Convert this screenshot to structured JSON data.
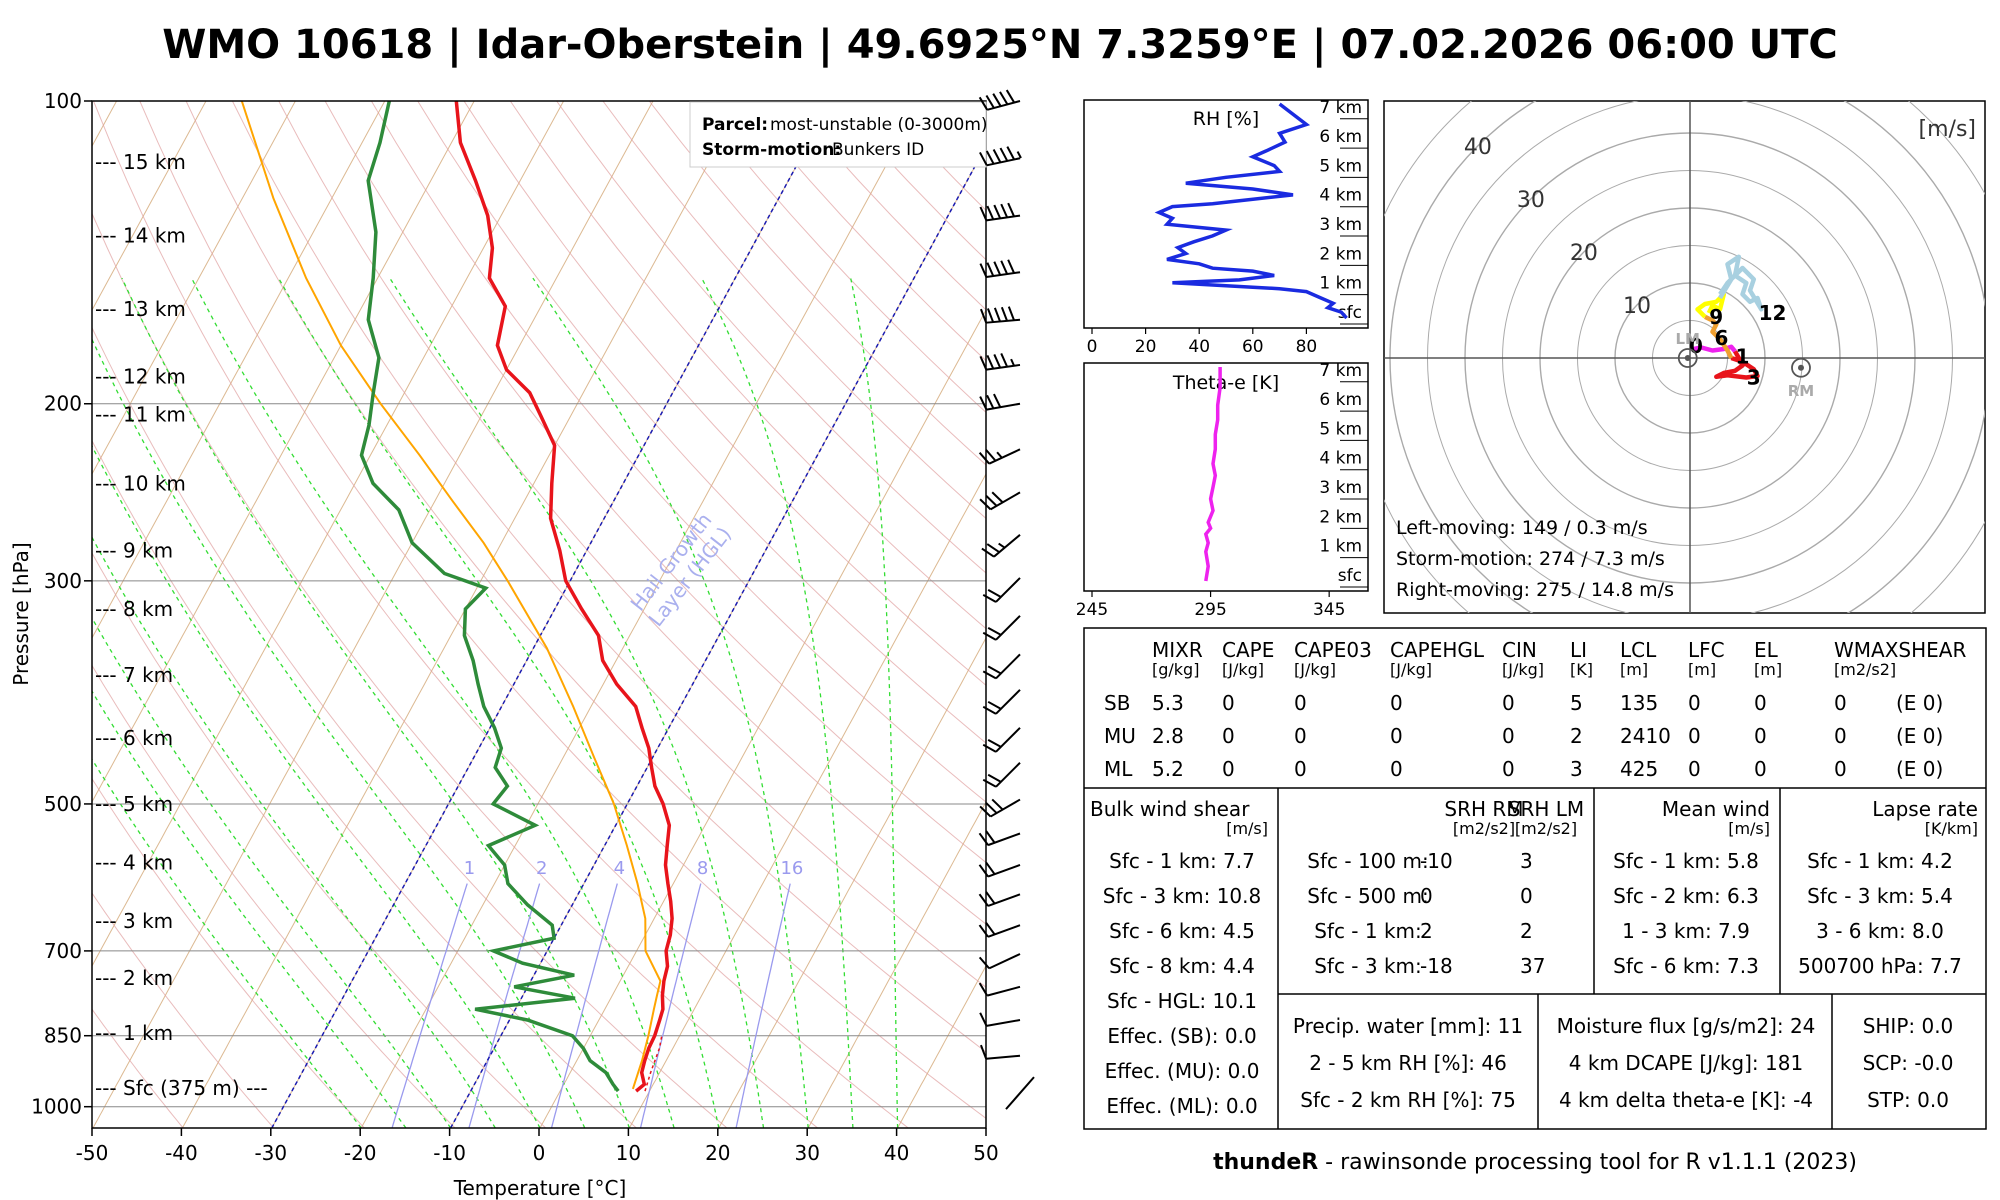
{
  "title": "WMO 10618 | Idar-Oberstein | 49.6925°N 7.3259°E | 07.02.2026 06:00 UTC",
  "footer": {
    "bold": "thundeR",
    "rest": " - rawinsonde processing tool for R v1.1.1 (2023)"
  },
  "colors": {
    "temperature": "#e8141b",
    "dewpoint": "#2e8b3a",
    "parcel": "#ffa500",
    "rh": "#1a2be0",
    "thetae": "#ee22ee",
    "hgl": "#1a1ab0",
    "mixing": "#9a9aee"
  },
  "chart_data": [
    {
      "type": "skew-t",
      "title": "",
      "xlabel": "Temperature [°C]",
      "ylabel": "Pressure [hPa]",
      "xlim": [
        -50,
        50
      ],
      "ylim": [
        1050,
        100
      ],
      "x_ticks": [
        -50,
        -40,
        -30,
        -20,
        -10,
        0,
        10,
        20,
        30,
        40,
        50
      ],
      "p_ticks": [
        100,
        200,
        300,
        500,
        700,
        850,
        1000
      ],
      "height_labels": [
        {
          "p": 115,
          "label": "--- 15 km"
        },
        {
          "p": 136,
          "label": "--- 14 km"
        },
        {
          "p": 161,
          "label": "--- 13 km"
        },
        {
          "p": 188,
          "label": "--- 12 km"
        },
        {
          "p": 205,
          "label": "--- 11 km"
        },
        {
          "p": 240,
          "label": "--- 10 km"
        },
        {
          "p": 280,
          "label": "--- 9 km"
        },
        {
          "p": 320,
          "label": "--- 8 km"
        },
        {
          "p": 372,
          "label": "--- 7 km"
        },
        {
          "p": 430,
          "label": "--- 6 km"
        },
        {
          "p": 500,
          "label": "--- 5 km"
        },
        {
          "p": 572,
          "label": "--- 4 km"
        },
        {
          "p": 654,
          "label": "--- 3 km"
        },
        {
          "p": 745,
          "label": "--- 2 km"
        },
        {
          "p": 845,
          "label": "--- 1 km"
        },
        {
          "p": 958,
          "label": "--- Sfc (375 m) ---"
        }
      ],
      "mixing_ratio_labels": [
        "1",
        "2",
        "4",
        "8",
        "16"
      ],
      "hgl_label_1": "Hail Growth",
      "hgl_label_2": "Layer (HGL)",
      "parcel_label": "Parcel:",
      "parcel_value": "most-unstable (0-3000m)",
      "storm_label": "Storm-motion:",
      "storm_value": "Bunkers ID",
      "temperature": [
        [
          965,
          8.5
        ],
        [
          950,
          9.0
        ],
        [
          925,
          8.0
        ],
        [
          900,
          7.6
        ],
        [
          875,
          7.3
        ],
        [
          850,
          7.2
        ],
        [
          820,
          6.8
        ],
        [
          800,
          6.5
        ],
        [
          775,
          5.6
        ],
        [
          750,
          4.9
        ],
        [
          725,
          4.4
        ],
        [
          700,
          3.3
        ],
        [
          675,
          2.8
        ],
        [
          650,
          2.0
        ],
        [
          625,
          0.8
        ],
        [
          600,
          -0.6
        ],
        [
          575,
          -2.0
        ],
        [
          550,
          -3.0
        ],
        [
          525,
          -4.0
        ],
        [
          500,
          -6.0
        ],
        [
          480,
          -8.0
        ],
        [
          460,
          -9.5
        ],
        [
          440,
          -11.0
        ],
        [
          420,
          -13.0
        ],
        [
          400,
          -15.0
        ],
        [
          380,
          -18.5
        ],
        [
          360,
          -21.5
        ],
        [
          340,
          -23.5
        ],
        [
          320,
          -27.0
        ],
        [
          300,
          -30.5
        ],
        [
          280,
          -33.0
        ],
        [
          260,
          -36.0
        ],
        [
          240,
          -38.0
        ],
        [
          220,
          -40.0
        ],
        [
          205,
          -43.5
        ],
        [
          195,
          -46.0
        ],
        [
          185,
          -50.0
        ],
        [
          175,
          -52.5
        ],
        [
          160,
          -54.0
        ],
        [
          150,
          -57.5
        ],
        [
          140,
          -59.0
        ],
        [
          130,
          -61.5
        ],
        [
          120,
          -65.0
        ],
        [
          110,
          -69.0
        ],
        [
          100,
          -72.0
        ]
      ],
      "dewpoint": [
        [
          965,
          6.5
        ],
        [
          950,
          5.5
        ],
        [
          925,
          4.0
        ],
        [
          900,
          1.5
        ],
        [
          875,
          0.0
        ],
        [
          850,
          -2.0
        ],
        [
          820,
          -8.0
        ],
        [
          800,
          -14.5
        ],
        [
          780,
          -4.0
        ],
        [
          760,
          -11.5
        ],
        [
          740,
          -5.5
        ],
        [
          720,
          -12.0
        ],
        [
          700,
          -16.0
        ],
        [
          680,
          -10.0
        ],
        [
          660,
          -11.0
        ],
        [
          630,
          -15.0
        ],
        [
          600,
          -18.5
        ],
        [
          575,
          -20.0
        ],
        [
          550,
          -23.0
        ],
        [
          525,
          -19.0
        ],
        [
          500,
          -25.0
        ],
        [
          480,
          -24.5
        ],
        [
          460,
          -27.0
        ],
        [
          440,
          -27.5
        ],
        [
          420,
          -29.5
        ],
        [
          400,
          -32.0
        ],
        [
          380,
          -34.0
        ],
        [
          360,
          -36.0
        ],
        [
          340,
          -38.5
        ],
        [
          320,
          -40.0
        ],
        [
          305,
          -39.0
        ],
        [
          295,
          -44.5
        ],
        [
          275,
          -50.0
        ],
        [
          255,
          -53.5
        ],
        [
          240,
          -58.0
        ],
        [
          225,
          -61.0
        ],
        [
          210,
          -62.0
        ],
        [
          195,
          -63.5
        ],
        [
          180,
          -65.0
        ],
        [
          165,
          -68.5
        ],
        [
          150,
          -70.5
        ],
        [
          135,
          -73.0
        ],
        [
          120,
          -77.0
        ],
        [
          110,
          -78.0
        ],
        [
          100,
          -79.5
        ]
      ],
      "parcel": [
        [
          960,
          8.0
        ],
        [
          900,
          7.3
        ],
        [
          850,
          6.5
        ],
        [
          800,
          5.5
        ],
        [
          775,
          5.0
        ],
        [
          750,
          4.5
        ],
        [
          700,
          1.0
        ],
        [
          650,
          -1.0
        ],
        [
          600,
          -4.0
        ],
        [
          550,
          -7.5
        ],
        [
          500,
          -11.5
        ],
        [
          450,
          -16.5
        ],
        [
          400,
          -22.0
        ],
        [
          350,
          -28.5
        ],
        [
          300,
          -37.0
        ],
        [
          275,
          -42.0
        ],
        [
          250,
          -48.0
        ],
        [
          225,
          -54.5
        ],
        [
          200,
          -62.0
        ],
        [
          175,
          -70.0
        ],
        [
          150,
          -78.0
        ],
        [
          125,
          -86.5
        ],
        [
          100,
          -96.0
        ]
      ]
    },
    {
      "type": "line",
      "title": "RH [%]",
      "xlabel": "",
      "x_ticks": [
        0,
        20,
        40,
        60,
        80
      ],
      "xlim": [
        0,
        100
      ],
      "ylim": [
        0,
        7.3
      ],
      "y_ticks_labels": [
        "sfc",
        "1 km",
        "2 km",
        "3 km",
        "4 km",
        "5 km",
        "6 km",
        "7 km"
      ],
      "x": [
        95,
        93,
        88,
        90,
        85,
        80,
        70,
        60,
        50,
        30,
        55,
        68,
        60,
        45,
        40,
        28,
        35,
        32,
        38,
        45,
        50,
        28,
        30,
        25,
        30,
        45,
        55,
        75,
        60,
        35,
        50,
        70,
        68,
        60,
        65,
        72,
        70,
        80,
        70
      ],
      "y": [
        0.0,
        0.2,
        0.35,
        0.5,
        0.7,
        0.9,
        1.0,
        1.05,
        1.1,
        1.2,
        1.3,
        1.45,
        1.6,
        1.7,
        1.85,
        2.0,
        2.2,
        2.4,
        2.6,
        2.8,
        3.0,
        3.2,
        3.4,
        3.6,
        3.8,
        3.9,
        4.0,
        4.2,
        4.4,
        4.6,
        4.8,
        5.0,
        5.2,
        5.5,
        5.7,
        6.0,
        6.3,
        6.6,
        7.3
      ]
    },
    {
      "type": "line",
      "title": "Theta-e [K]",
      "xlabel": "",
      "x_ticks": [
        245,
        295,
        345
      ],
      "xlim": [
        245,
        358
      ],
      "ylim": [
        0,
        7.3
      ],
      "y_ticks_labels": [
        "sfc",
        "1 km",
        "2 km",
        "3 km",
        "4 km",
        "5 km",
        "6 km",
        "7 km"
      ],
      "x": [
        293,
        294,
        293,
        294,
        293,
        295,
        294,
        296,
        295,
        296,
        297,
        296,
        297,
        297,
        298,
        298,
        299,
        299
      ],
      "y": [
        0.0,
        0.5,
        1.0,
        1.3,
        1.6,
        1.8,
        2.0,
        2.4,
        2.8,
        3.2,
        3.6,
        4.0,
        4.5,
        5.0,
        5.5,
        6.0,
        6.6,
        7.3
      ]
    },
    {
      "type": "hodograph",
      "units": "[m/s]",
      "ring_labels": [
        "10",
        "20",
        "30",
        "40"
      ],
      "segment_labels": [
        "0",
        "1",
        "3",
        "6",
        "9",
        "12"
      ],
      "lm_label": "LM",
      "rm_label": "RM",
      "segments": [
        {
          "name": "0-1 km",
          "color": "#ee22ee",
          "u": [
            0.5,
            1.5,
            3.0,
            4.5,
            5.5,
            6.0
          ],
          "v": [
            1.2,
            1.4,
            1.0,
            1.2,
            1.5,
            0.9
          ]
        },
        {
          "name": "1-3 km",
          "color": "#e8141b",
          "u": [
            6.0,
            6.5,
            7.0,
            6.0,
            4.5,
            3.5,
            5.0,
            7.5,
            9.0,
            8.5,
            7.0,
            5.5
          ],
          "v": [
            0.9,
            0.0,
            -1.0,
            -1.7,
            -2.0,
            -2.5,
            -2.3,
            -2.6,
            -2.4,
            -1.5,
            -0.5,
            0.0
          ]
        },
        {
          "name": "3-6 km",
          "color": "#f0a030",
          "u": [
            5.5,
            5.0,
            4.0,
            3.0,
            3.5,
            3.0,
            2.0
          ],
          "v": [
            0.0,
            1.0,
            2.5,
            3.5,
            4.5,
            5.0,
            5.5
          ]
        },
        {
          "name": "6-9 km",
          "color": "#ffff00",
          "u": [
            2.0,
            1.0,
            2.0,
            3.5,
            4.5,
            4.0,
            3.0,
            2.5
          ],
          "v": [
            5.5,
            6.5,
            7.2,
            7.5,
            8.5,
            6.5,
            7.0,
            6.0
          ]
        },
        {
          "name": "9-12 km",
          "color": "#a8d0e0",
          "u": [
            4.0,
            5.5,
            5.0,
            6.5,
            6.0,
            7.5,
            7.0,
            8.0,
            9.0,
            9.5,
            8.0,
            8.5,
            7.0,
            5.0,
            4.0
          ],
          "v": [
            8.0,
            10.5,
            12.5,
            13.5,
            11.0,
            10.0,
            8.5,
            7.5,
            8.0,
            6.5,
            9.0,
            10.5,
            12.0,
            10.0,
            8.5
          ]
        }
      ],
      "lm": {
        "u": -0.3,
        "v": 0.0
      },
      "rm": {
        "u": 14.8,
        "v": -1.3
      },
      "texts": [
        "Left-moving: 149 / 0.3 m/s",
        "Storm-motion: 274 / 7.3 m/s",
        "Right-moving: 275 / 14.8 m/s"
      ]
    },
    {
      "type": "table",
      "columns": [
        [
          "MIXR",
          "[g/kg]"
        ],
        [
          "CAPE",
          "[J/kg]"
        ],
        [
          "CAPE03",
          "[J/kg]"
        ],
        [
          "CAPEHGL",
          "[J/kg]"
        ],
        [
          "CIN",
          "[J/kg]"
        ],
        [
          "LI",
          "[K]"
        ],
        [
          "LCL",
          "[m]"
        ],
        [
          "LFC",
          "[m]"
        ],
        [
          "EL",
          "[m]"
        ],
        [
          "WMAXSHEAR",
          "[m2/s2]"
        ]
      ],
      "rows": [
        {
          "label": "SB",
          "values": [
            "5.3",
            "0",
            "0",
            "0",
            "0",
            "5",
            "135",
            "0",
            "0",
            "0",
            "(E 0)"
          ]
        },
        {
          "label": "MU",
          "values": [
            "2.8",
            "0",
            "0",
            "0",
            "0",
            "2",
            "2410",
            "0",
            "0",
            "0",
            "(E 0)"
          ]
        },
        {
          "label": "ML",
          "values": [
            "5.2",
            "0",
            "0",
            "0",
            "0",
            "3",
            "425",
            "0",
            "0",
            "0",
            "(E 0)"
          ]
        }
      ]
    },
    {
      "type": "table",
      "bulk_shear": {
        "title": "Bulk wind shear",
        "unit": "[m/s]",
        "rows": [
          "Sfc - 1 km: 7.7",
          "Sfc - 3 km: 10.8",
          "Sfc - 6 km: 4.5",
          "Sfc - 8 km: 4.4",
          "Sfc - HGL: 10.1",
          "Effec. (SB): 0.0",
          "Effec. (MU): 0.0",
          "Effec. (ML): 0.0"
        ]
      },
      "srh": {
        "title_rm": "SRH RM",
        "title_lm": "SRH LM",
        "unit_rm": "[m2/s2]",
        "unit_lm": "[m2/s2]",
        "rows": [
          [
            "Sfc - 100 m:",
            "-10",
            "3"
          ],
          [
            "Sfc - 500 m:",
            "0",
            "0"
          ],
          [
            "Sfc - 1 km:",
            "2",
            "2"
          ],
          [
            "Sfc - 3 km:",
            "-18",
            "37"
          ]
        ]
      },
      "mean_wind": {
        "title": "Mean wind",
        "unit": "[m/s]",
        "rows": [
          "Sfc - 1 km: 5.8",
          "Sfc - 2 km: 6.3",
          "1 - 3 km: 7.9",
          "Sfc - 6 km: 7.3"
        ]
      },
      "lapse": {
        "title": "Lapse rate",
        "unit": "[K/km]",
        "rows": [
          "Sfc - 1 km: 4.2",
          "Sfc - 3 km: 5.4",
          "3 - 6 km: 8.0",
          "500700 hPa: 7.7"
        ]
      },
      "moisture_a": [
        "Precip. water [mm]: 11",
        "2 - 5 km RH [%]: 46",
        "Sfc - 2 km RH [%]: 75"
      ],
      "moisture_b": [
        "Moisture flux [g/s/m2]: 24",
        "4 km DCAPE [J/kg]: 181",
        "4 km delta theta-e [K]: -4"
      ],
      "composite": [
        "SHIP: 0.0",
        "SCP: -0.0",
        "STP: 0.0"
      ]
    }
  ],
  "barbs": [
    {
      "p": 100,
      "dir": 255,
      "spd": 24
    },
    {
      "p": 114,
      "dir": 258,
      "spd": 27
    },
    {
      "p": 130,
      "dir": 262,
      "spd": 26
    },
    {
      "p": 148,
      "dir": 262,
      "spd": 26
    },
    {
      "p": 165,
      "dir": 265,
      "spd": 24
    },
    {
      "p": 183,
      "dir": 262,
      "spd": 22
    },
    {
      "p": 200,
      "dir": 260,
      "spd": 14
    },
    {
      "p": 222,
      "dir": 245,
      "spd": 12
    },
    {
      "p": 245,
      "dir": 240,
      "spd": 14
    },
    {
      "p": 270,
      "dir": 230,
      "spd": 12
    },
    {
      "p": 298,
      "dir": 225,
      "spd": 9
    },
    {
      "p": 325,
      "dir": 225,
      "spd": 9
    },
    {
      "p": 355,
      "dir": 225,
      "spd": 9
    },
    {
      "p": 385,
      "dir": 225,
      "spd": 9
    },
    {
      "p": 420,
      "dir": 225,
      "spd": 9
    },
    {
      "p": 455,
      "dir": 225,
      "spd": 9
    },
    {
      "p": 495,
      "dir": 240,
      "spd": 14
    },
    {
      "p": 535,
      "dir": 250,
      "spd": 10
    },
    {
      "p": 575,
      "dir": 250,
      "spd": 10
    },
    {
      "p": 615,
      "dir": 250,
      "spd": 10
    },
    {
      "p": 660,
      "dir": 250,
      "spd": 10
    },
    {
      "p": 705,
      "dir": 245,
      "spd": 5
    },
    {
      "p": 760,
      "dir": 255,
      "spd": 5
    },
    {
      "p": 820,
      "dir": 260,
      "spd": 5
    },
    {
      "p": 890,
      "dir": 265,
      "spd": 5
    },
    {
      "p": 965,
      "dir": 240,
      "spd": 0
    }
  ]
}
